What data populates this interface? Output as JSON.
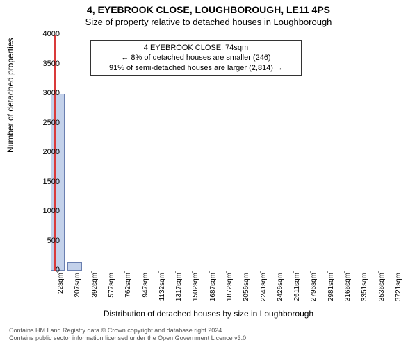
{
  "title1": "4, EYEBROOK CLOSE, LOUGHBOROUGH, LE11 4PS",
  "title2": "Size of property relative to detached houses in Loughborough",
  "ylabel": "Number of detached properties",
  "xlabel": "Distribution of detached houses by size in Loughborough",
  "chart": {
    "type": "bar",
    "ylim": [
      0,
      4000
    ],
    "yticks": [
      0,
      500,
      1000,
      1500,
      2000,
      2500,
      3000,
      3500,
      4000
    ],
    "xtick_labels": [
      "22sqm",
      "207sqm",
      "392sqm",
      "577sqm",
      "762sqm",
      "947sqm",
      "1132sqm",
      "1317sqm",
      "1502sqm",
      "1687sqm",
      "1872sqm",
      "2056sqm",
      "2241sqm",
      "2426sqm",
      "2611sqm",
      "2796sqm",
      "2981sqm",
      "3166sqm",
      "3351sqm",
      "3536sqm",
      "3721sqm"
    ],
    "bars": [
      {
        "value": 3000,
        "color": "#c3d1ea",
        "border": "#6a7fb0"
      },
      {
        "value": 140,
        "color": "#c3d1ea",
        "border": "#6a7fb0"
      }
    ],
    "marker": {
      "color": "#d93a3a"
    },
    "background_color": "#ffffff",
    "axis_color": "#888888",
    "tick_fontsize": 11,
    "xtick_fontsize": 10,
    "label_fontsize": 12,
    "title_fontsize": 14
  },
  "annotation": {
    "line1": "4 EYEBROOK CLOSE: 74sqm",
    "line2": "← 8% of detached houses are smaller (246)",
    "line3": "91% of semi-detached houses are larger (2,814) →"
  },
  "footer": {
    "line1": "Contains HM Land Registry data © Crown copyright and database right 2024.",
    "line2": "Contains public sector information licensed under the Open Government Licence v3.0."
  }
}
